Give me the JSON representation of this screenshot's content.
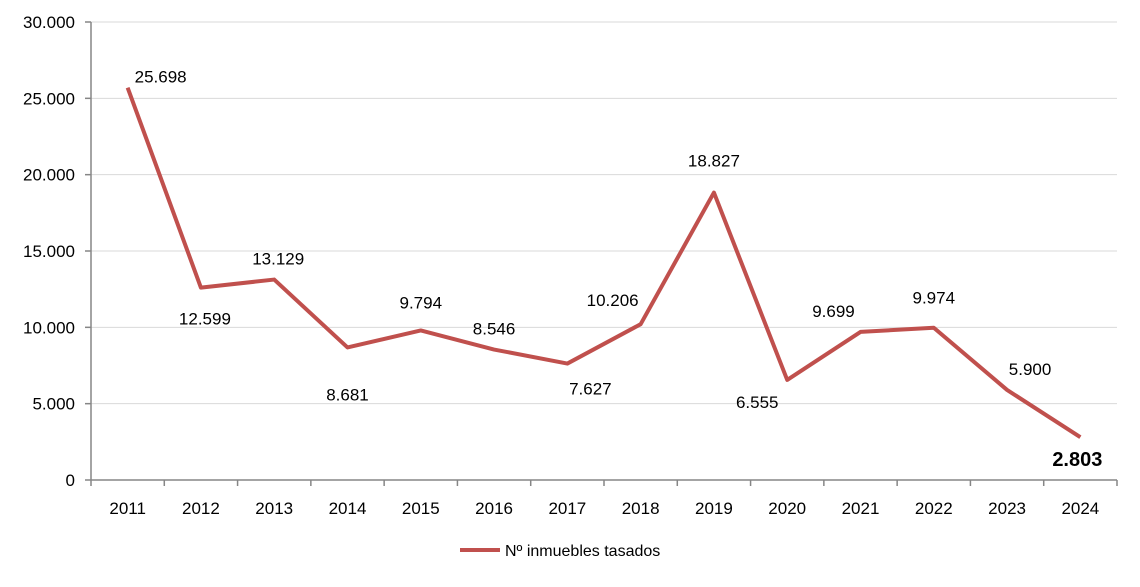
{
  "chart_data": {
    "type": "line",
    "title": "",
    "xlabel": "",
    "ylabel": "",
    "categories": [
      "2011",
      "2012",
      "2013",
      "2014",
      "2015",
      "2016",
      "2017",
      "2018",
      "2019",
      "2020",
      "2021",
      "2022",
      "2023",
      "2024"
    ],
    "series": [
      {
        "name": "Nº inmuebles tasados",
        "color": "#C0504D",
        "values": [
          25698,
          12599,
          13129,
          8681,
          9794,
          8546,
          7627,
          10206,
          18827,
          6555,
          9699,
          9974,
          5900,
          2803
        ],
        "labels": [
          "25.698",
          "12.599",
          "13.129",
          "8.681",
          "9.794",
          "8.546",
          "7.627",
          "10.206",
          "18.827",
          "6.555",
          "9.699",
          "9.974",
          "5.900",
          "2.803"
        ]
      }
    ],
    "ylim": [
      0,
      30000
    ],
    "yticks": [
      0,
      5000,
      10000,
      15000,
      20000,
      25000,
      30000
    ],
    "ytick_labels": [
      "0",
      "5.000",
      "10.000",
      "15.000",
      "20.000",
      "25.000",
      "30.000"
    ],
    "grid": true,
    "legend": "bottom-center"
  }
}
